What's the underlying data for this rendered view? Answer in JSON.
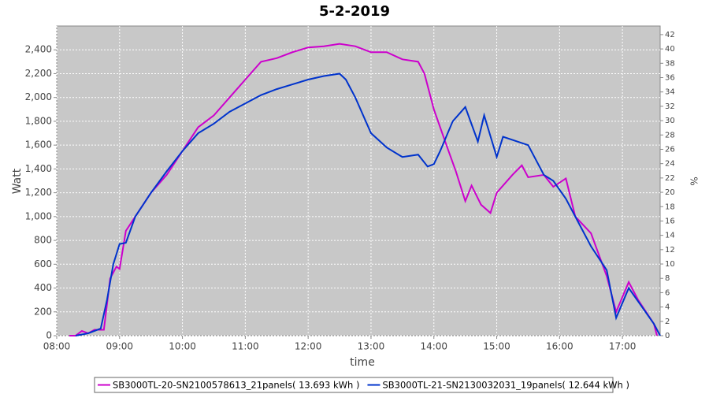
{
  "chart_data": {
    "type": "line",
    "title": "5-2-2019",
    "xlabel": "time",
    "ylabel": "Watt",
    "y2label": "%",
    "xlim": [
      8,
      17.6
    ],
    "xticks": [
      {
        "value": 8,
        "label": "08:00"
      },
      {
        "value": 9,
        "label": "09:00"
      },
      {
        "value": 10,
        "label": "10:00"
      },
      {
        "value": 11,
        "label": "11:00"
      },
      {
        "value": 12,
        "label": "12:00"
      },
      {
        "value": 13,
        "label": "13:00"
      },
      {
        "value": 14,
        "label": "14:00"
      },
      {
        "value": 15,
        "label": "15:00"
      },
      {
        "value": 16,
        "label": "16:00"
      },
      {
        "value": 17,
        "label": "17:00"
      }
    ],
    "ylim": [
      0,
      2600
    ],
    "yticks": [
      0,
      200,
      400,
      600,
      800,
      {
        "value": 1000,
        "label": "1,000"
      },
      {
        "value": 1200,
        "label": "1,200"
      },
      {
        "value": 1400,
        "label": "1,400"
      },
      {
        "value": 1600,
        "label": "1,600"
      },
      {
        "value": 1800,
        "label": "1,800"
      },
      {
        "value": 2000,
        "label": "2,000"
      },
      {
        "value": 2200,
        "label": "2,200"
      },
      {
        "value": 2400,
        "label": "2,400"
      }
    ],
    "y2lim": [
      0,
      43.2
    ],
    "y2ticks": [
      0,
      2,
      4,
      6,
      8,
      10,
      12,
      14,
      16,
      18,
      20,
      22,
      24,
      26,
      28,
      30,
      32,
      34,
      36,
      38,
      40,
      42
    ],
    "grid": true,
    "legend": "bottom",
    "series": [
      {
        "name": "SB3000TL-20-SN2100578613_21panels( 13.693 kWh )",
        "color": "#cc00cc",
        "x": [
          8.2,
          8.3,
          8.4,
          8.5,
          8.6,
          8.75,
          8.85,
          8.95,
          9.0,
          9.1,
          9.25,
          9.5,
          9.75,
          10.0,
          10.25,
          10.5,
          10.75,
          11.0,
          11.25,
          11.5,
          11.75,
          12.0,
          12.25,
          12.5,
          12.75,
          13.0,
          13.25,
          13.5,
          13.75,
          13.85,
          14.0,
          14.2,
          14.35,
          14.5,
          14.6,
          14.75,
          14.9,
          15.0,
          15.25,
          15.4,
          15.5,
          15.75,
          15.9,
          16.1,
          16.25,
          16.5,
          16.75,
          16.9,
          17.1,
          17.25,
          17.5,
          17.55
        ],
        "values": [
          0,
          0,
          40,
          20,
          50,
          50,
          480,
          580,
          560,
          880,
          1000,
          1200,
          1350,
          1550,
          1750,
          1850,
          2000,
          2150,
          2300,
          2330,
          2380,
          2420,
          2430,
          2450,
          2430,
          2380,
          2380,
          2320,
          2300,
          2200,
          1900,
          1600,
          1380,
          1130,
          1260,
          1100,
          1030,
          1200,
          1350,
          1430,
          1330,
          1350,
          1250,
          1320,
          1000,
          860,
          500,
          200,
          450,
          300,
          100,
          0
        ]
      },
      {
        "name": "SB3000TL-21-SN2130032031_19panels( 12.644 kWh )",
        "color": "#0033cc",
        "x": [
          8.3,
          8.5,
          8.7,
          8.8,
          8.9,
          9.0,
          9.1,
          9.25,
          9.5,
          9.75,
          10.0,
          10.25,
          10.5,
          10.75,
          11.0,
          11.25,
          11.5,
          11.75,
          12.0,
          12.25,
          12.5,
          12.6,
          12.75,
          13.0,
          13.25,
          13.5,
          13.75,
          13.9,
          14.0,
          14.1,
          14.3,
          14.5,
          14.7,
          14.8,
          15.0,
          15.1,
          15.5,
          15.75,
          15.9,
          16.1,
          16.25,
          16.5,
          16.75,
          16.9,
          17.1,
          17.3,
          17.5,
          17.6
        ],
        "values": [
          0,
          20,
          60,
          300,
          600,
          770,
          780,
          1000,
          1200,
          1380,
          1550,
          1700,
          1780,
          1880,
          1950,
          2020,
          2070,
          2110,
          2150,
          2180,
          2200,
          2150,
          2000,
          1700,
          1580,
          1500,
          1520,
          1420,
          1440,
          1550,
          1800,
          1920,
          1630,
          1850,
          1500,
          1670,
          1600,
          1350,
          1300,
          1150,
          1000,
          750,
          550,
          150,
          400,
          250,
          100,
          0
        ]
      }
    ]
  }
}
